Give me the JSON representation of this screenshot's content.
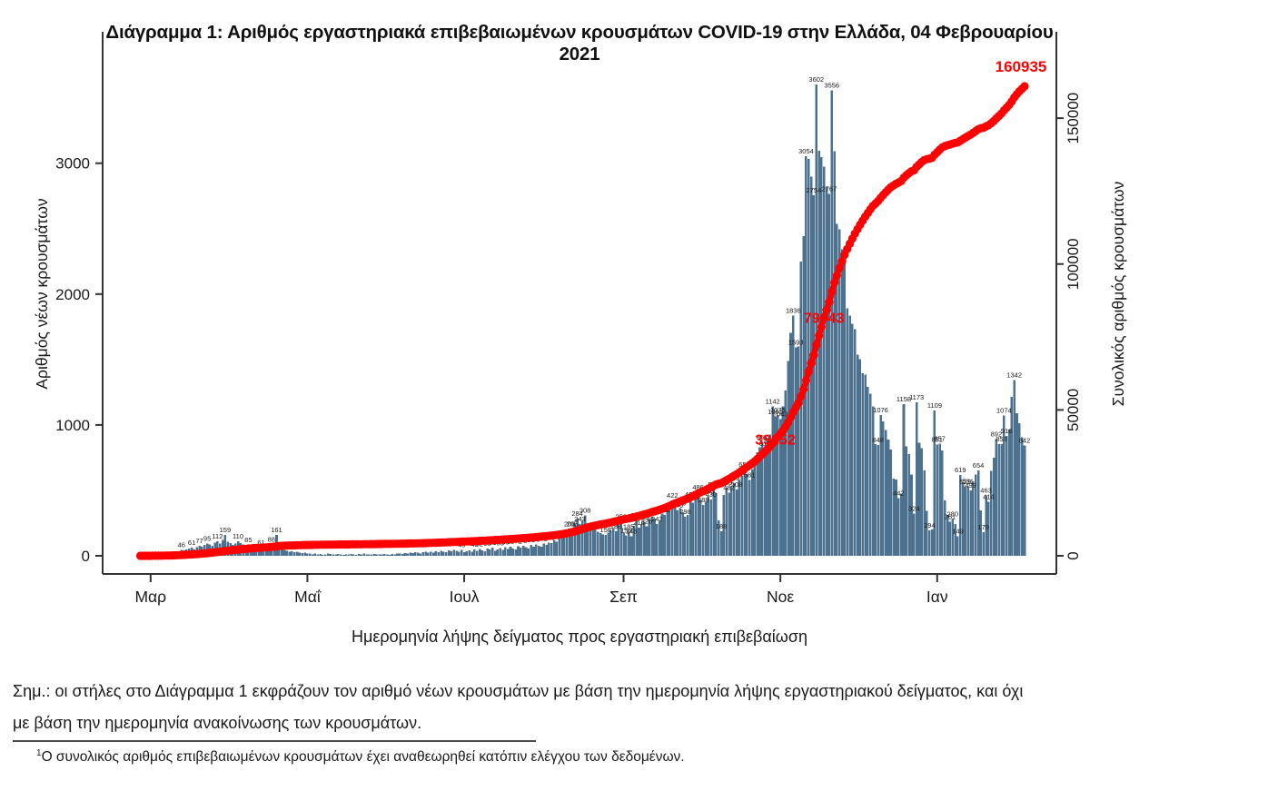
{
  "title": "Διάγραμμα 1: Αριθμός εργαστηριακά επιβεβαιωμένων κρουσμάτων COVID-19 στην Ελλάδα, 04 Φεβρουαρίου 2021",
  "note_lines": [
    "Σημ.: οι στήλες στο Διάγραμμα 1 εκφράζουν τον αριθμό νέων κρουσμάτων με βάση την ημερομηνία λήψης εργαστηριακού δείγματος, και όχι",
    "με βάση την ημερομηνία ανακοίνωσης των κρουσμάτων."
  ],
  "footnote_marker": "1",
  "footnote_text": "Ο συνολικός αριθμός επιβεβαιωμένων κρουσμάτων έχει αναθεωρηθεί κατόπιν ελέγχου των δεδομένων.",
  "chart_data": {
    "type": "bar",
    "combo": "bars = daily new cases (left axis), dotted red line = cumulative cases (right axis)",
    "xlabel": "Ημερομηνία λήψης δείγματος προς εργαστηριακή επιβεβαίωση",
    "ylabel_left": "Αριθμός νέων κρουσμάτων",
    "ylabel_right": "Συνολικός αριθμός κρουσμάτων",
    "x_ticks": [
      "Μαρ",
      "Μαΐ",
      "Ιουλ",
      "Σεπ",
      "Νοε",
      "Ιαν"
    ],
    "x_tick_day_indices": [
      4,
      65,
      126,
      188,
      249,
      310
    ],
    "y_ticks_left": [
      0,
      1000,
      2000,
      3000
    ],
    "y_ticks_right": [
      0,
      50000,
      100000,
      150000
    ],
    "ylim_left": [
      0,
      4000
    ],
    "ylim_right": [
      0,
      178000
    ],
    "grid": false,
    "bar_color": "#4d7290",
    "line_color": "#ff0000",
    "annotation_color": "#ff0000",
    "annotations": [
      {
        "text": "39152",
        "at_cumulative": 39152,
        "position": "on-line"
      },
      {
        "text": "79043",
        "at_cumulative": 79043,
        "position": "on-line"
      },
      {
        "text": "160935",
        "at_cumulative": 160935,
        "position": "end"
      }
    ],
    "cumulative_total": 160935,
    "peak_daily_value": 3602,
    "daily_values": [
      2,
      2,
      0,
      2,
      5,
      7,
      4,
      10,
      12,
      16,
      21,
      17,
      25,
      31,
      28,
      35,
      46,
      42,
      49,
      56,
      61,
      49,
      66,
      77,
      71,
      84,
      95,
      88,
      77,
      99,
      112,
      95,
      121,
      159,
      107,
      96,
      85,
      92,
      110,
      96,
      88,
      79,
      85,
      71,
      66,
      59,
      52,
      61,
      48,
      56,
      66,
      88,
      53,
      161,
      88,
      53,
      44,
      38,
      31,
      36,
      28,
      33,
      24,
      21,
      26,
      18,
      16,
      12,
      19,
      10,
      14,
      8,
      11,
      16,
      13,
      9,
      12,
      15,
      10,
      8,
      12,
      9,
      14,
      11,
      8,
      13,
      10,
      16,
      12,
      9,
      11,
      14,
      10,
      12,
      9,
      13,
      11,
      8,
      14,
      10,
      16,
      19,
      13,
      22,
      18,
      25,
      20,
      27,
      23,
      19,
      29,
      33,
      26,
      31,
      24,
      35,
      29,
      38,
      31,
      27,
      42,
      35,
      44,
      38,
      33,
      46,
      29,
      35,
      41,
      33,
      48,
      39,
      52,
      43,
      36,
      56,
      47,
      61,
      39,
      50,
      58,
      44,
      65,
      52,
      68,
      57,
      48,
      72,
      61,
      78,
      66,
      54,
      83,
      71,
      88,
      75,
      68,
      92,
      83,
      101,
      97,
      118,
      108,
      131,
      135,
      152,
      158,
      206,
      205,
      242,
      284,
      243,
      268,
      308,
      248,
      226,
      216,
      203,
      184,
      172,
      162,
      158,
      176,
      196,
      212,
      188,
      231,
      259,
      176,
      156,
      185,
      148,
      229,
      269,
      216,
      243,
      259,
      226,
      282,
      298,
      284,
      242,
      268,
      323,
      312,
      342,
      392,
      422,
      388,
      346,
      366,
      332,
      298,
      312,
      430,
      405,
      448,
      486,
      422,
      388,
      412,
      456,
      430,
      505,
      478,
      269,
      188,
      465,
      520,
      482,
      530,
      556,
      508,
      578,
      612,
      659,
      626,
      581,
      659,
      715,
      790,
      831,
      867,
      819,
      904,
      927,
      1142,
      1061,
      1075,
      1043,
      1142,
      1263,
      1488,
      1703,
      1836,
      1593,
      1599,
      2250,
      2444,
      3054,
      3032,
      2898,
      2754,
      3602,
      3096,
      3048,
      2973,
      2818,
      2767,
      3556,
      3093,
      2535,
      2496,
      2342,
      2247,
      1892,
      1835,
      1774,
      1730,
      1536,
      1503,
      1395,
      1384,
      1291,
      1240,
      1142,
      852,
      848,
      1076,
      1027,
      960,
      890,
      812,
      589,
      582,
      442,
      474,
      1158,
      838,
      777,
      622,
      324,
      1173,
      863,
      824,
      654,
      344,
      194,
      202,
      1109,
      851,
      857,
      805,
      425,
      314,
      261,
      280,
      244,
      149,
      619,
      561,
      529,
      531,
      499,
      569,
      622,
      654,
      347,
      179,
      463,
      414,
      649,
      749,
      892,
      855,
      853,
      1074,
      916,
      963,
      1214,
      1342,
      1089,
      1014,
      905,
      842
    ]
  }
}
